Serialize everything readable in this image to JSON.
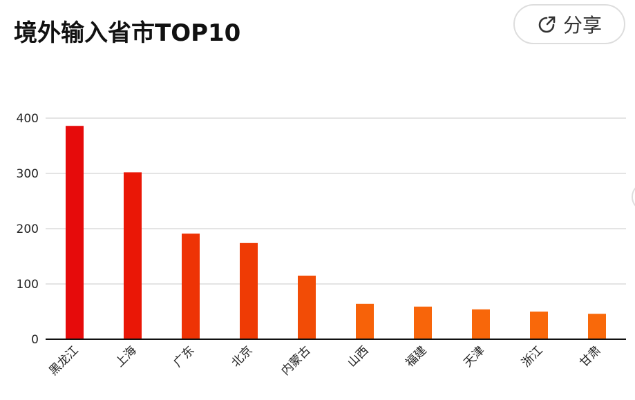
{
  "header": {
    "title": "境外输入省市TOP10",
    "share": "分享"
  },
  "chart_data": {
    "type": "bar",
    "categories": [
      "黑龙江",
      "上海",
      "广东",
      "北京",
      "内蒙古",
      "山西",
      "福建",
      "天津",
      "浙江",
      "甘肃"
    ],
    "values": [
      386,
      302,
      191,
      174,
      115,
      64,
      59,
      54,
      50,
      46
    ],
    "colors": [
      "#e60b0b",
      "#ea1706",
      "#ee3305",
      "#ef3b05",
      "#f24c06",
      "#f76209",
      "#f8650a",
      "#f8670a",
      "#f9680a",
      "#f9690a"
    ],
    "ylim": [
      0,
      400
    ],
    "yticks": [
      0,
      100,
      200,
      300,
      400
    ],
    "grid": true
  }
}
